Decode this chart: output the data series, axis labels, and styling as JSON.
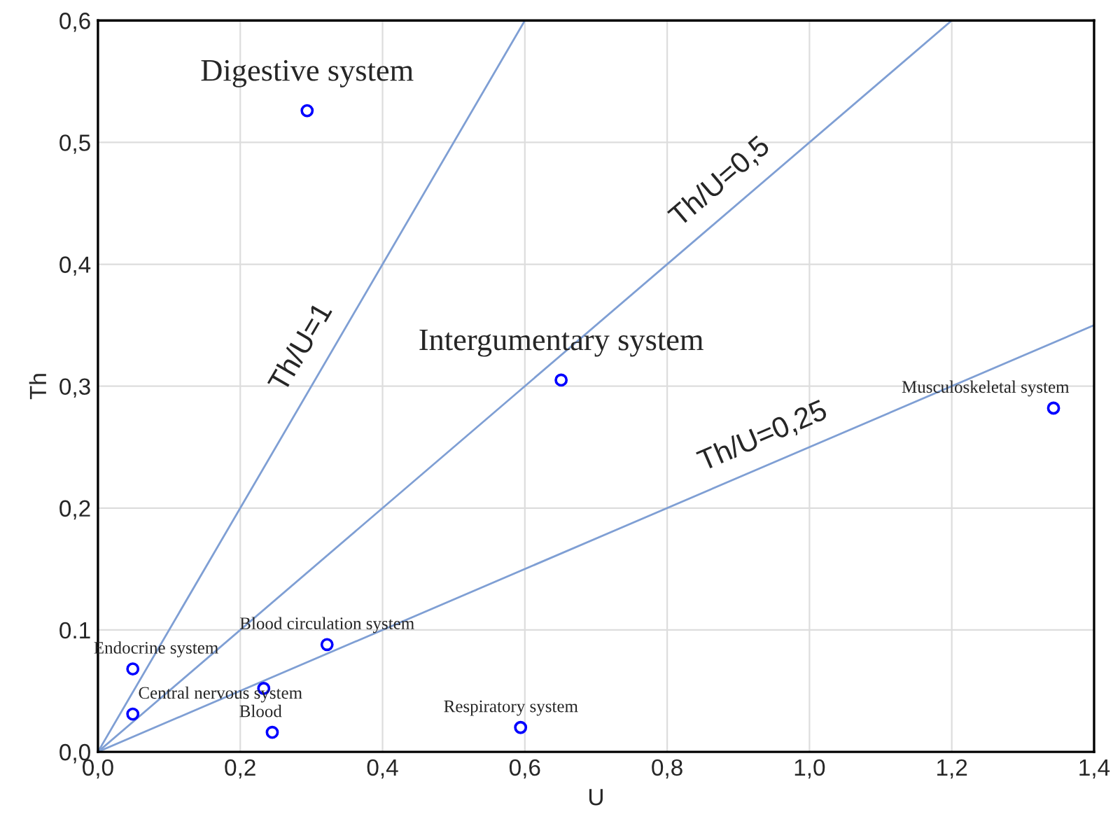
{
  "chart_data": {
    "type": "scatter",
    "xlabel": "U",
    "ylabel": "Th",
    "series": [
      {
        "color": "#0000ff",
        "marker": "circle",
        "x": [
          0.294,
          0.651,
          1.343,
          0.322,
          0.049,
          0.049,
          0.233,
          0.245,
          0.594
        ],
        "values": [
          0.526,
          0.305,
          0.282,
          0.088,
          0.068,
          0.031,
          0.052,
          0.016,
          0.02
        ]
      },
      {
        "type": "line",
        "color": "#7f9fd4",
        "x": [
          0,
          0.6
        ],
        "values": [
          0,
          0.6
        ]
      },
      {
        "type": "line",
        "color": "#7f9fd4",
        "x": [
          0,
          1.2
        ],
        "values": [
          0,
          0.6
        ]
      },
      {
        "type": "line",
        "color": "#7f9fd4",
        "x": [
          0,
          1.4
        ],
        "values": [
          0,
          0.35
        ]
      }
    ],
    "annotations": [
      {
        "text": "Digestive system",
        "x": 0.294,
        "y": 0.526
      },
      {
        "text": "Intergumentary system",
        "x": 0.651,
        "y": 0.305
      },
      {
        "text": "Musculoskeletal system",
        "x": 1.343,
        "y": 0.282
      },
      {
        "text": "Blood circulation system",
        "x": 0.322,
        "y": 0.088
      },
      {
        "text": "Endocrine system",
        "x": 0.049,
        "y": 0.068
      },
      {
        "text": "Central nervous system",
        "x": 0.049,
        "y": 0.031
      },
      {
        "text": "Blood",
        "x": 0.245,
        "y": 0.016
      },
      {
        "text": "Respiratory system",
        "x": 0.594,
        "y": 0.02
      },
      {
        "text": "Th/U=1",
        "x": 0.32,
        "y": 0.32
      },
      {
        "text": "Th/U=0,5",
        "x": 0.9,
        "y": 0.45
      },
      {
        "text": "Th/U=0,25",
        "x": 0.95,
        "y": 0.2375
      }
    ],
    "xlim": [
      0,
      1.4
    ],
    "ylim": [
      0,
      0.6
    ],
    "xticks": [
      {
        "value": 0,
        "label": "0,0"
      },
      {
        "value": 0.2,
        "label": "0,2"
      },
      {
        "value": 0.4,
        "label": "0,4"
      },
      {
        "value": 0.6,
        "label": "0,6"
      },
      {
        "value": 0.8,
        "label": "0,8"
      },
      {
        "value": 1.0,
        "label": "1,0"
      },
      {
        "value": 1.2,
        "label": "1,2"
      },
      {
        "value": 1.4,
        "label": "1,4"
      }
    ],
    "yticks": [
      {
        "value": 0,
        "label": "0,0"
      },
      {
        "value": 0.1,
        "label": "0.1"
      },
      {
        "value": 0.2,
        "label": "0,2"
      },
      {
        "value": 0.3,
        "label": "0,3"
      },
      {
        "value": 0.4,
        "label": "0,4"
      },
      {
        "value": 0.5,
        "label": "0,5"
      },
      {
        "value": 0.6,
        "label": "0,6"
      }
    ],
    "grid": true
  }
}
